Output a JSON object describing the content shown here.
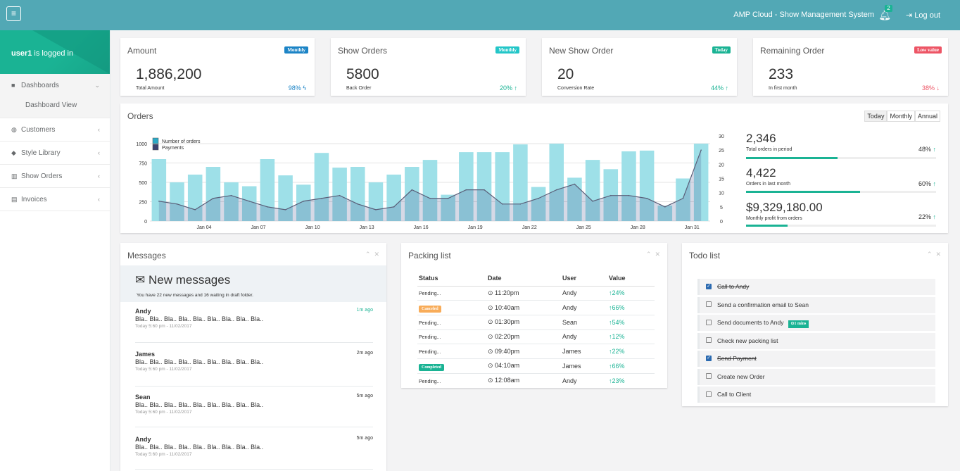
{
  "topbar": {
    "menu_icon": "hamburger-icon",
    "system_name": "AMP Cloud - Show Management System",
    "notification_count": "2",
    "logout_label": "Log out"
  },
  "sidebar": {
    "user_name": "user1",
    "user_suffix": " is logged in",
    "items": [
      {
        "label": "Dashboards",
        "icon": "grid-icon",
        "arrow": "⌄"
      },
      {
        "label": "Dashboard View"
      },
      {
        "label": "Customers",
        "icon": "user-icon",
        "arrow": "‹"
      },
      {
        "label": "Style Library",
        "icon": "tag-icon",
        "arrow": "‹"
      },
      {
        "label": "Show Orders",
        "icon": "barcode-icon",
        "arrow": "‹"
      },
      {
        "label": "Invoices",
        "icon": "file-icon",
        "arrow": "‹"
      }
    ]
  },
  "stats": [
    {
      "title": "Amount",
      "label": "Monthly",
      "label_color": "#1c84c6",
      "value": "1,886,200",
      "sub": "Total Amount",
      "pct": "98%",
      "pct_icon": "ϟ",
      "pct_color": "#1c84c6"
    },
    {
      "title": "Show Orders",
      "label": "Monthly",
      "label_color": "#23c6c8",
      "value": "5800",
      "sub": "Back Order",
      "pct": "20%",
      "pct_icon": "↑",
      "pct_color": "#1ab394"
    },
    {
      "title": "New Show Order",
      "label": "Today",
      "label_color": "#1ab394",
      "value": "20",
      "sub": "Conversion Rate",
      "pct": "44%",
      "pct_icon": "↑",
      "pct_color": "#1ab394"
    },
    {
      "title": "Remaining Order",
      "label": "Low value",
      "label_color": "#ed5565",
      "value": "233",
      "sub": "In first month",
      "pct": "38%",
      "pct_icon": "↓",
      "pct_color": "#ed5565"
    }
  ],
  "orders": {
    "title": "Orders",
    "buttons": [
      "Today",
      "Monthly",
      "Annual"
    ],
    "kpis": [
      {
        "value": "2,346",
        "label": "Total orders in period",
        "pct": "48%",
        "progress": 0.48
      },
      {
        "value": "4,422",
        "label": "Orders in last month",
        "pct": "60%",
        "progress": 0.6
      },
      {
        "value": "$9,329,180.00",
        "label": "Monthly profit from orders",
        "pct": "22%",
        "progress": 0.22
      }
    ]
  },
  "chart_data": {
    "type": "bar",
    "legend": [
      "Number of orders",
      "Payments"
    ],
    "x_ticks": [
      "Jan 04",
      "Jan 07",
      "Jan 10",
      "Jan 13",
      "Jan 16",
      "Jan 19",
      "Jan 22",
      "Jan 25",
      "Jan 28",
      "Jan 31"
    ],
    "y_left_ticks": [
      "0",
      "250",
      "500",
      "750",
      "1000"
    ],
    "y_right_ticks": [
      "0",
      "5",
      "10",
      "15",
      "20",
      "25",
      "30"
    ],
    "ylim_left": [
      0,
      1100
    ],
    "ylim_right": [
      0,
      30
    ],
    "series": [
      {
        "name": "Number of orders",
        "values": [
          800,
          500,
          600,
          700,
          500,
          450,
          800,
          590,
          470,
          880,
          690,
          700,
          500,
          600,
          700,
          790,
          340,
          890,
          890,
          890,
          990,
          440,
          1000,
          560,
          790,
          670,
          900,
          910,
          200,
          550,
          1000
        ]
      },
      {
        "name": "Payments",
        "values": [
          7,
          6,
          4,
          8,
          9,
          7,
          5,
          4,
          7,
          8,
          9,
          6,
          4,
          5,
          11,
          8,
          8,
          11,
          11,
          6,
          6,
          8,
          11,
          13,
          7,
          9,
          9,
          8,
          5,
          8,
          25
        ]
      }
    ]
  },
  "messages": {
    "title": "Messages",
    "heading": "New messages",
    "subtext": "You have 22 new messages and 16 waiting in draft folder.",
    "items": [
      {
        "name": "Andy",
        "ago": "1m ago",
        "body": "Bla.. Bla.. Bla.. Bla.. Bla.. Bla.. Bla.. Bla.. Bla..",
        "date": "Today 5:60 pm - 11/02/2017"
      },
      {
        "name": "James",
        "ago": "2m ago",
        "body": "Bla.. Bla.. Bla.. Bla.. Bla.. Bla.. Bla.. Bla.. Bla..",
        "date": "Today 5:60 pm - 11/02/2017"
      },
      {
        "name": "Sean",
        "ago": "5m ago",
        "body": "Bla.. Bla.. Bla.. Bla.. Bla.. Bla.. Bla.. Bla.. Bla..",
        "date": "Today 5:60 pm - 11/02/2017"
      },
      {
        "name": "Andy",
        "ago": "5m ago",
        "body": "Bla.. Bla.. Bla.. Bla.. Bla.. Bla.. Bla.. Bla.. Bla..",
        "date": "Today 5:60 pm - 11/02/2017"
      }
    ]
  },
  "packing": {
    "title": "Packing list",
    "headers": [
      "Status",
      "Date",
      "User",
      "Value"
    ],
    "rows": [
      {
        "status": "Pending...",
        "time": "11:20pm",
        "user": "Andy",
        "value": "24%"
      },
      {
        "status": "Canceled",
        "status_color": "#f8ac59",
        "time": "10:40am",
        "user": "Andy",
        "value": "66%"
      },
      {
        "status": "Pending...",
        "time": "01:30pm",
        "user": "Sean",
        "value": "54%"
      },
      {
        "status": "Pending...",
        "time": "02:20pm",
        "user": "Andy",
        "value": "12%"
      },
      {
        "status": "Pending...",
        "time": "09:40pm",
        "user": "James",
        "value": "22%"
      },
      {
        "status": "Completed",
        "status_color": "#1ab394",
        "time": "04:10am",
        "user": "James",
        "value": "66%"
      },
      {
        "status": "Pending...",
        "time": "12:08am",
        "user": "Andy",
        "value": "23%"
      }
    ]
  },
  "todo": {
    "title": "Todo list",
    "items": [
      {
        "text": "Call to Andy",
        "checked": true
      },
      {
        "text": "Send a confirmation email to Sean",
        "checked": false
      },
      {
        "text": "Send documents to Andy",
        "checked": false,
        "badge": "1 mins"
      },
      {
        "text": "Check new packing list",
        "checked": false
      },
      {
        "text": "Send Payment",
        "checked": true
      },
      {
        "text": "Create new Order",
        "checked": false
      },
      {
        "text": "Call to Client",
        "checked": false
      }
    ]
  }
}
